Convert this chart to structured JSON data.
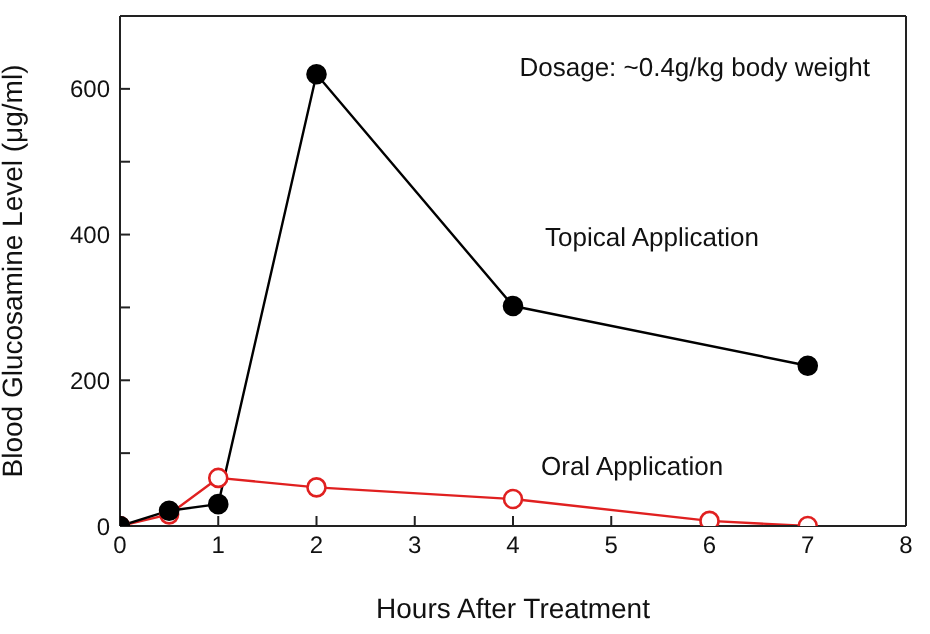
{
  "chart_data": {
    "type": "line",
    "xlabel": "Hours After Treatment",
    "ylabel": "Blood Glucosamine Level (μg/ml)",
    "annotations": [
      "Dosage: ~0.4g/kg body weight"
    ],
    "xlim": [
      0,
      8
    ],
    "xticks": [
      0,
      1,
      2,
      3,
      4,
      5,
      6,
      7,
      8
    ],
    "ylim": [
      0,
      700
    ],
    "yticks": [
      0,
      {
        "value": 100,
        "label": null
      },
      200,
      {
        "value": 300,
        "label": null
      },
      400,
      {
        "value": 500,
        "label": null
      },
      600
    ],
    "grid": false,
    "legend": false,
    "marker": "circle",
    "line_style": "solid",
    "series": [
      {
        "name": "Topical Application",
        "color": "#000000",
        "x": [
          0,
          0.5,
          1,
          2,
          4,
          7
        ],
        "values": [
          0,
          21,
          30,
          620,
          302,
          220
        ]
      },
      {
        "name": "Oral Application",
        "color": "#e02020",
        "x": [
          0,
          0.5,
          1,
          2,
          4,
          6,
          7
        ],
        "values": [
          0,
          16,
          66,
          53,
          37,
          7,
          0
        ]
      }
    ]
  }
}
